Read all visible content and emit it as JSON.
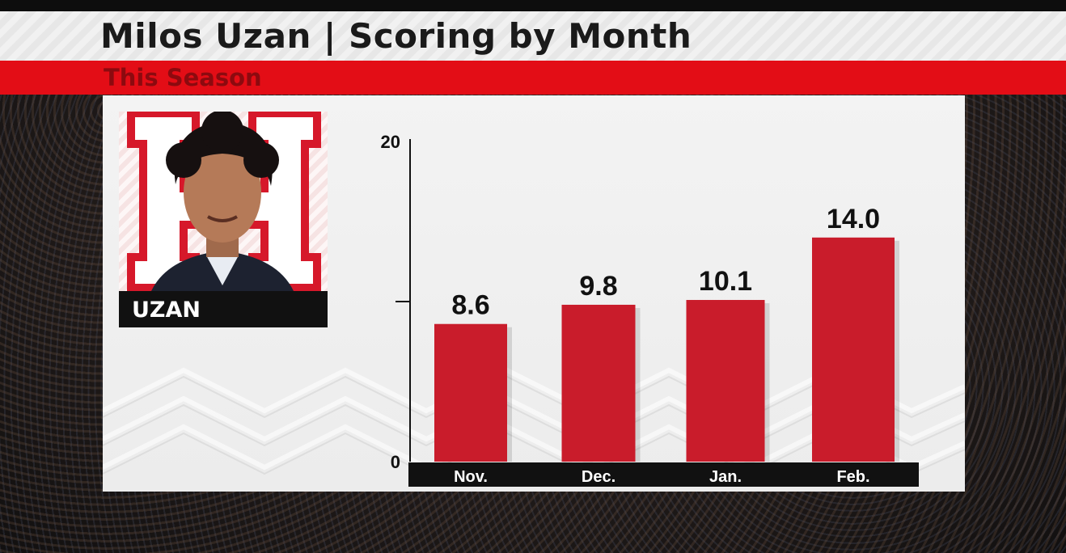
{
  "header": {
    "title": "Milos Uzan | Scoring by Month",
    "subtitle": "This Season"
  },
  "player": {
    "name": "UZAN"
  },
  "colors": {
    "bar": "#c91c2b",
    "accent": "#e30d16",
    "label_bar": "#111111"
  },
  "chart_data": {
    "type": "bar",
    "title": "Milos Uzan | Scoring by Month",
    "subtitle": "This Season",
    "categories": [
      "Nov.",
      "Dec.",
      "Jan.",
      "Feb."
    ],
    "values": [
      8.6,
      9.8,
      10.1,
      14.0
    ],
    "value_labels": [
      "8.6",
      "9.8",
      "10.1",
      "14.0"
    ],
    "ylim": [
      0,
      20
    ],
    "yticks": [
      0,
      10,
      20
    ],
    "ytick_labels": [
      "0",
      "",
      "20"
    ],
    "grid": false,
    "legend": "none"
  }
}
